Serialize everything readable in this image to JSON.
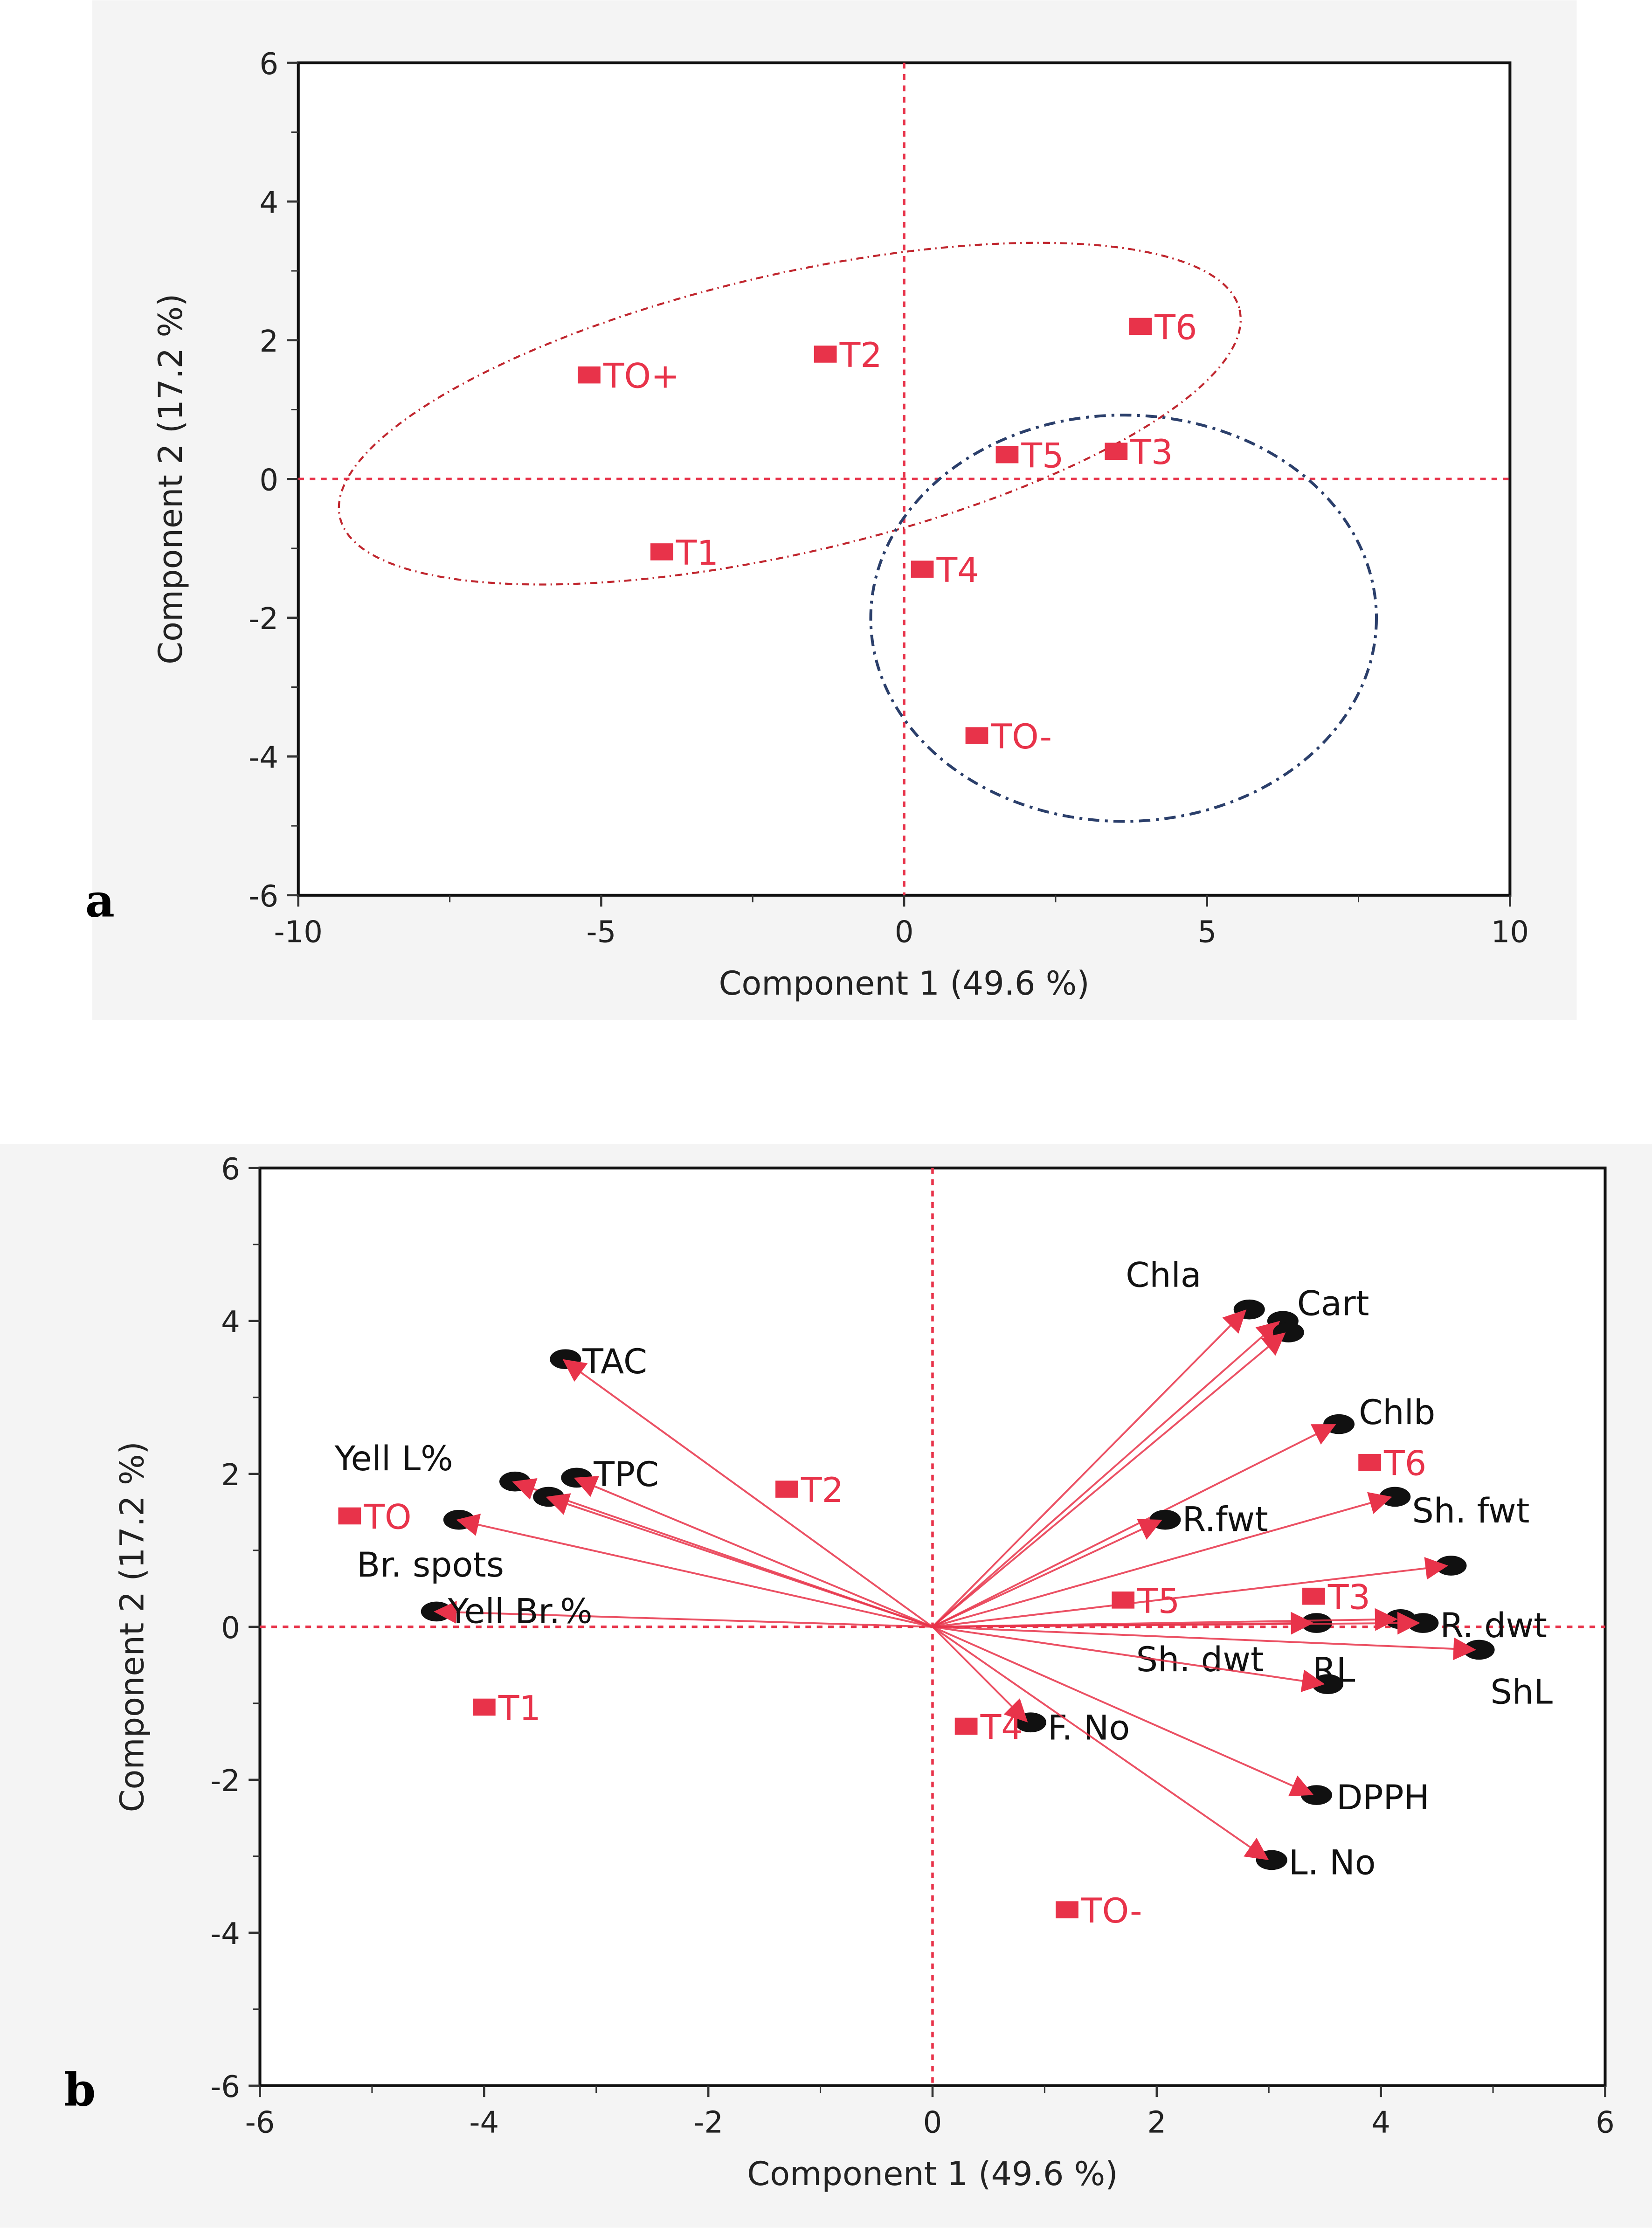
{
  "colors": {
    "point": "#e8334a",
    "vector": "#e8334a",
    "ref_line": "#e8334a",
    "ellipse_red": "#c0262e",
    "ellipse_blue": "#2b3f6b",
    "background": "#f4f4f4"
  },
  "chart_data": [
    {
      "type": "scatter",
      "panel": "a",
      "title": "",
      "xlabel": "Component 1  (49.6 %)",
      "ylabel": "Component 2  (17.2 %)",
      "xlim": [
        -10,
        10
      ],
      "ylim": [
        -6,
        6
      ],
      "xticks": [
        -10,
        -5,
        0,
        5,
        10
      ],
      "yticks": [
        -6,
        -4,
        -2,
        0,
        2,
        4,
        6
      ],
      "points": [
        {
          "label": "TO+",
          "x": -5.2,
          "y": 1.5
        },
        {
          "label": "T2",
          "x": -1.3,
          "y": 1.8
        },
        {
          "label": "T6",
          "x": 3.9,
          "y": 2.2
        },
        {
          "label": "T5",
          "x": 1.7,
          "y": 0.35
        },
        {
          "label": "T3",
          "x": 3.5,
          "y": 0.4
        },
        {
          "label": "T1",
          "x": -4.0,
          "y": -1.05
        },
        {
          "label": "T4",
          "x": 0.3,
          "y": -1.3
        },
        {
          "label": "TO-",
          "x": 1.2,
          "y": -3.7
        }
      ],
      "groups": [
        {
          "members": [
            "TO+",
            "T2",
            "T6",
            "T1"
          ],
          "style": "red dash-dot ellipse"
        },
        {
          "members": [
            "T5",
            "T3",
            "T4",
            "TO-"
          ],
          "style": "blue dash-dot ellipse"
        }
      ]
    },
    {
      "type": "scatter",
      "subtype": "biplot",
      "panel": "b",
      "title": "",
      "xlabel": "Component 1  (49.6 %)",
      "ylabel": "Component 2  (17.2 %)",
      "xlim": [
        -6,
        6
      ],
      "ylim": [
        -6,
        6
      ],
      "xticks": [
        -6,
        -4,
        -2,
        0,
        2,
        4,
        6
      ],
      "yticks": [
        -6,
        -4,
        -2,
        0,
        2,
        4,
        6
      ],
      "points": [
        {
          "label": "TO",
          "x": -5.2,
          "y": 1.45
        },
        {
          "label": "T2",
          "x": -1.3,
          "y": 1.8
        },
        {
          "label": "T6",
          "x": 3.9,
          "y": 2.15
        },
        {
          "label": "T5",
          "x": 1.7,
          "y": 0.35
        },
        {
          "label": "T3",
          "x": 3.4,
          "y": 0.4
        },
        {
          "label": "T1",
          "x": -4.0,
          "y": -1.05
        },
        {
          "label": "T4",
          "x": 0.3,
          "y": -1.3
        },
        {
          "label": "TO-",
          "x": 1.2,
          "y": -3.7
        }
      ],
      "vectors": [
        {
          "label": "TAC",
          "x": -3.3,
          "y": 3.5
        },
        {
          "label": "Yell L%",
          "x": -3.75,
          "y": 1.9
        },
        {
          "label": "TPC",
          "x": -3.2,
          "y": 1.95
        },
        {
          "label": "",
          "x": -3.45,
          "y": 1.7
        },
        {
          "label": "Br. spots",
          "x": -4.25,
          "y": 1.4
        },
        {
          "label": "Yell Br.%",
          "x": -4.45,
          "y": 0.2
        },
        {
          "label": "Chla",
          "x": 2.8,
          "y": 4.15
        },
        {
          "label": "Cart",
          "x": 3.1,
          "y": 4.0
        },
        {
          "label": "",
          "x": 3.15,
          "y": 3.85
        },
        {
          "label": "Chlb",
          "x": 3.6,
          "y": 2.65
        },
        {
          "label": "R.fwt",
          "x": 2.05,
          "y": 1.4
        },
        {
          "label": "Sh. fwt",
          "x": 4.1,
          "y": 1.7
        },
        {
          "label": "",
          "x": 4.6,
          "y": 0.8
        },
        {
          "label": "Sh. dwt",
          "x": 3.4,
          "y": 0.05
        },
        {
          "label": "RL",
          "x": 4.15,
          "y": 0.1
        },
        {
          "label": "R. dwt",
          "x": 4.35,
          "y": 0.05
        },
        {
          "label": "ShL",
          "x": 4.85,
          "y": -0.3
        },
        {
          "label": "",
          "x": 3.5,
          "y": -0.75
        },
        {
          "label": "F. No",
          "x": 0.85,
          "y": -1.25
        },
        {
          "label": "DPPH",
          "x": 3.4,
          "y": -2.2
        },
        {
          "label": "L. No",
          "x": 3.0,
          "y": -3.05
        }
      ]
    }
  ],
  "panel_labels": [
    "a",
    "b"
  ]
}
